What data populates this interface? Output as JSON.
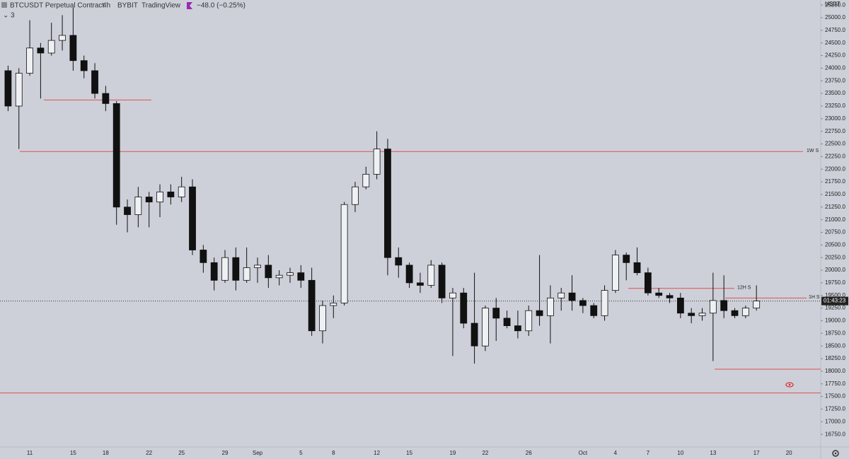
{
  "chart_data": {
    "type": "candlestick",
    "symbol": "BTCUSDT Perpetual Contract",
    "interval": "4h",
    "exchange": "BYBIT",
    "source": "TradingView",
    "change": "−48.0 (−0.25%)",
    "indicator_count": "3",
    "currency": "USDT",
    "up_color": "#eef0f4",
    "down_color": "#111111",
    "level_color": "#e05050",
    "categories": [
      null,
      null,
      "11",
      null,
      null,
      null,
      "15",
      null,
      null,
      "18",
      null,
      null,
      null,
      "22",
      null,
      null,
      "25",
      null,
      null,
      null,
      "29",
      null,
      null,
      "Sep",
      null,
      null,
      null,
      "5",
      null,
      null,
      "8",
      null,
      null,
      null,
      "12",
      null,
      null,
      "15",
      null,
      null,
      null,
      "19",
      null,
      null,
      "22",
      null,
      null,
      null,
      "26",
      null,
      null,
      null,
      null,
      "Oct",
      null,
      null,
      "4",
      null,
      null,
      "7",
      null,
      null,
      "10",
      null,
      null,
      "13",
      null,
      null,
      null,
      "17",
      null,
      null,
      "20"
    ],
    "open": [
      23950,
      23250,
      23900,
      24400,
      24300,
      24550,
      24650,
      24150,
      23950,
      23500,
      23300,
      21250,
      21100,
      21450,
      21350,
      21550,
      21450,
      21650,
      20400,
      20150,
      19800,
      20250,
      19800,
      20050,
      20100,
      19850,
      19900,
      19950,
      19800,
      18800,
      19300,
      19350,
      21300,
      21650,
      21900,
      22400,
      20250,
      20100,
      19750,
      19700,
      20100,
      19450,
      19550,
      18950,
      18500,
      19250,
      19050,
      18900,
      18800,
      19200,
      19100,
      19450,
      19550,
      19400,
      19300,
      19100,
      19600,
      20300,
      20150,
      19950,
      19550,
      19500,
      19450,
      19150,
      19100,
      19150,
      19400,
      19200,
      19100,
      19250,
      null,
      null,
      null
    ],
    "high": [
      24050,
      24000,
      24950,
      24500,
      24900,
      25050,
      25200,
      24250,
      24100,
      23650,
      23350,
      21400,
      21650,
      21550,
      21700,
      21700,
      21850,
      21800,
      20500,
      20250,
      20400,
      20450,
      20450,
      20250,
      20300,
      20000,
      20050,
      20100,
      20050,
      19400,
      19500,
      21350,
      21750,
      22050,
      22750,
      22600,
      20450,
      20150,
      19950,
      20200,
      20150,
      19650,
      19650,
      19950,
      19300,
      19450,
      19200,
      19200,
      19300,
      20300,
      19700,
      19650,
      19900,
      19450,
      19350,
      19700,
      20400,
      20350,
      20450,
      20050,
      19650,
      19550,
      19550,
      19250,
      19250,
      19950,
      19900,
      19250,
      19300,
      19700,
      null,
      null,
      null
    ],
    "low": [
      23150,
      22400,
      23850,
      23400,
      24250,
      24350,
      23950,
      23800,
      23400,
      23150,
      20900,
      20750,
      20850,
      20850,
      21050,
      21300,
      21350,
      20300,
      19950,
      19600,
      19750,
      19600,
      19750,
      19750,
      19650,
      19700,
      19750,
      19650,
      18700,
      18550,
      19050,
      19300,
      21150,
      21600,
      21800,
      19900,
      19850,
      19650,
      19550,
      19650,
      19350,
      18300,
      18850,
      18150,
      18400,
      18600,
      18850,
      18650,
      18700,
      18900,
      18550,
      19200,
      19200,
      19150,
      19050,
      19000,
      19550,
      19800,
      19900,
      19500,
      19450,
      19350,
      19050,
      18950,
      19000,
      18200,
      19050,
      19050,
      19050,
      19200,
      null,
      null,
      null
    ],
    "close": [
      23250,
      23900,
      24400,
      24300,
      24550,
      24650,
      24150,
      23950,
      23500,
      23300,
      21250,
      21100,
      21450,
      21350,
      21550,
      21450,
      21650,
      20400,
      20150,
      19800,
      20250,
      19800,
      20050,
      20100,
      19850,
      19900,
      19950,
      19800,
      18800,
      19300,
      19350,
      21300,
      21650,
      21900,
      22400,
      20250,
      20100,
      19750,
      19700,
      20100,
      19450,
      19550,
      18950,
      18500,
      19250,
      19050,
      18900,
      18800,
      19200,
      19100,
      19450,
      19550,
      19400,
      19300,
      19100,
      19600,
      20300,
      20150,
      19950,
      19550,
      19500,
      19450,
      19150,
      19100,
      19150,
      19400,
      19200,
      19100,
      19250,
      19390,
      null,
      null,
      null
    ],
    "levels": [
      {
        "value": 23370
      },
      {
        "value": 22350,
        "label": "1W S"
      },
      {
        "value": 19640,
        "label": "12H S"
      },
      {
        "value": 19450,
        "label": "1H S"
      },
      {
        "value": 18040
      },
      {
        "value": 17570
      }
    ],
    "last_price": 19390,
    "countdown": "01:43:23",
    "ylim": [
      16500,
      25350
    ],
    "yticks": [
      {
        "value": 16750,
        "label": "16750.0"
      },
      {
        "value": 17000,
        "label": "17000.0"
      },
      {
        "value": 17250,
        "label": "17250.0"
      },
      {
        "value": 17500,
        "label": "17500.0"
      },
      {
        "value": 17750,
        "label": "17750.0"
      },
      {
        "value": 18000,
        "label": "18000.0"
      },
      {
        "value": 18250,
        "label": "18250.0"
      },
      {
        "value": 18500,
        "label": "18500.0"
      },
      {
        "value": 18750,
        "label": "18750.0"
      },
      {
        "value": 19000,
        "label": "19000.0"
      },
      {
        "value": 19250,
        "label": "19250.0"
      },
      {
        "value": 19500,
        "label": "19500.0"
      },
      {
        "value": 19750,
        "label": "19750.0"
      },
      {
        "value": 20000,
        "label": "20000.0"
      },
      {
        "value": 20250,
        "label": "20250.0"
      },
      {
        "value": 20500,
        "label": "20500.0"
      },
      {
        "value": 20750,
        "label": "20750.0"
      },
      {
        "value": 21000,
        "label": "21000.0"
      },
      {
        "value": 21250,
        "label": "21250.0"
      },
      {
        "value": 21500,
        "label": "21500.0"
      },
      {
        "value": 21750,
        "label": "21750.0"
      },
      {
        "value": 22000,
        "label": "22000.0"
      },
      {
        "value": 22250,
        "label": "22250.0"
      },
      {
        "value": 22500,
        "label": "22500.0"
      },
      {
        "value": 22750,
        "label": "22750.0"
      },
      {
        "value": 23000,
        "label": "23000.0"
      },
      {
        "value": 23250,
        "label": "23250.0"
      },
      {
        "value": 23500,
        "label": "23500.0"
      },
      {
        "value": 23750,
        "label": "23750.0"
      },
      {
        "value": 24000,
        "label": "24000.0"
      },
      {
        "value": 24250,
        "label": "24250.0"
      },
      {
        "value": 24500,
        "label": "24500.0"
      },
      {
        "value": 24750,
        "label": "24750.0"
      },
      {
        "value": 25000,
        "label": "25000.0"
      },
      {
        "value": 25250,
        "label": "25250.0"
      }
    ]
  }
}
